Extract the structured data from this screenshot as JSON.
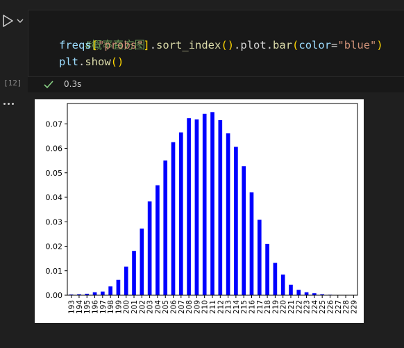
{
  "cell": {
    "execution_count": "[12]",
    "duration": "0.3s",
    "code": {
      "comment": "#概率直方图",
      "line2": {
        "var": "freqs",
        "open_bracket": "[",
        "key": "\"probs\"",
        "close_bracket": "]",
        "dot1": ".",
        "method1": "sort_index",
        "paren1": "()",
        "chain": ".plot.",
        "method2": "bar",
        "open_paren": "(",
        "param": "color",
        "eq": "=",
        "color_value": "\"blue\"",
        "close_paren": ")"
      },
      "line3": {
        "obj": "plt",
        "dot": ".",
        "method": "show",
        "parens": "()"
      }
    }
  },
  "colors": {
    "bar": "#0000ff",
    "success": "#89d185"
  },
  "icons": {
    "run": "play-icon",
    "chevron": "chevron-down-icon",
    "status": "check-icon",
    "more": "ellipsis-icon"
  },
  "chart_data": {
    "type": "bar",
    "categories": [
      "193",
      "194",
      "195",
      "196",
      "197",
      "198",
      "199",
      "200",
      "201",
      "202",
      "203",
      "204",
      "205",
      "206",
      "207",
      "208",
      "209",
      "210",
      "211",
      "212",
      "213",
      "214",
      "215",
      "216",
      "217",
      "218",
      "219",
      "220",
      "221",
      "222",
      "223",
      "224",
      "225",
      "226",
      "227",
      "228",
      "229"
    ],
    "values": [
      0.0003,
      0.0004,
      0.0006,
      0.0012,
      0.0015,
      0.0036,
      0.0063,
      0.0117,
      0.0181,
      0.0272,
      0.0383,
      0.0449,
      0.055,
      0.0625,
      0.0665,
      0.0723,
      0.0718,
      0.0741,
      0.0748,
      0.0715,
      0.0661,
      0.0606,
      0.0527,
      0.042,
      0.0308,
      0.021,
      0.0132,
      0.0084,
      0.0043,
      0.0022,
      0.0012,
      0.0008,
      0.0004,
      0.0002,
      0.0001,
      0.0,
      0.0
    ],
    "yticks": [
      "0.00",
      "0.01",
      "0.02",
      "0.03",
      "0.04",
      "0.05",
      "0.06",
      "0.07"
    ],
    "ylim": [
      0,
      0.0783
    ],
    "xlabel": "",
    "ylabel": "",
    "title": ""
  }
}
